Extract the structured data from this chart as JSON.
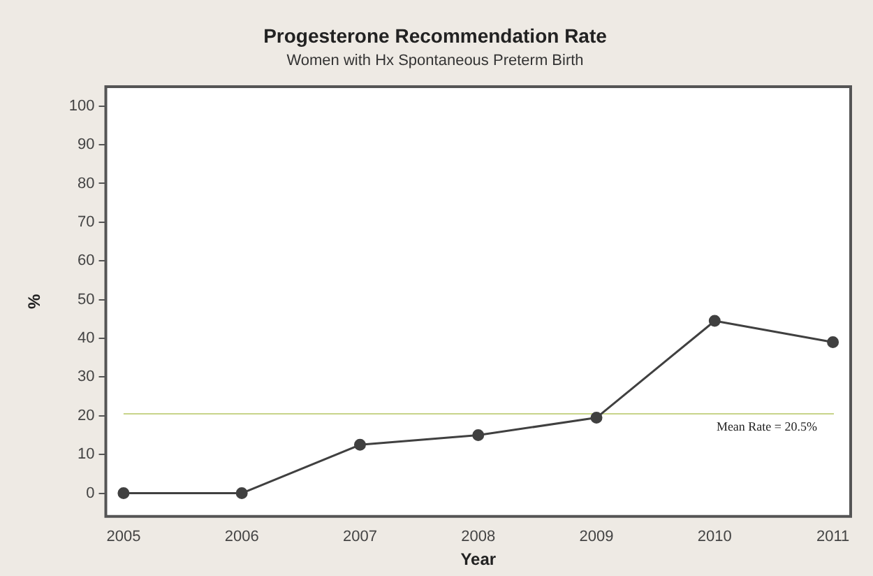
{
  "chart_data": {
    "type": "line",
    "title": "Progesterone Recommendation Rate",
    "subtitle": "Women with Hx Spontaneous Preterm Birth",
    "xlabel": "Year",
    "ylabel": "%",
    "x": [
      2005,
      2006,
      2007,
      2008,
      2009,
      2010,
      2011
    ],
    "series": [
      {
        "color": "#404040",
        "values": [
          0,
          0,
          12.5,
          15,
          19.5,
          44.5,
          39
        ]
      }
    ],
    "xlim": [
      2004.85,
      2011.15
    ],
    "xticks": [
      2005,
      2006,
      2007,
      2008,
      2009,
      2010,
      2011
    ],
    "ylim": [
      -6,
      105
    ],
    "yticks": [
      0,
      10,
      20,
      30,
      40,
      50,
      60,
      70,
      80,
      90,
      100
    ],
    "ref_lines": [
      {
        "axis": "y",
        "value": 20.5,
        "label": "Mean Rate = 20.5%",
        "color": "#c8d48a"
      }
    ],
    "marker": "circle",
    "line_style": "solid",
    "grid": false,
    "legend": false
  }
}
